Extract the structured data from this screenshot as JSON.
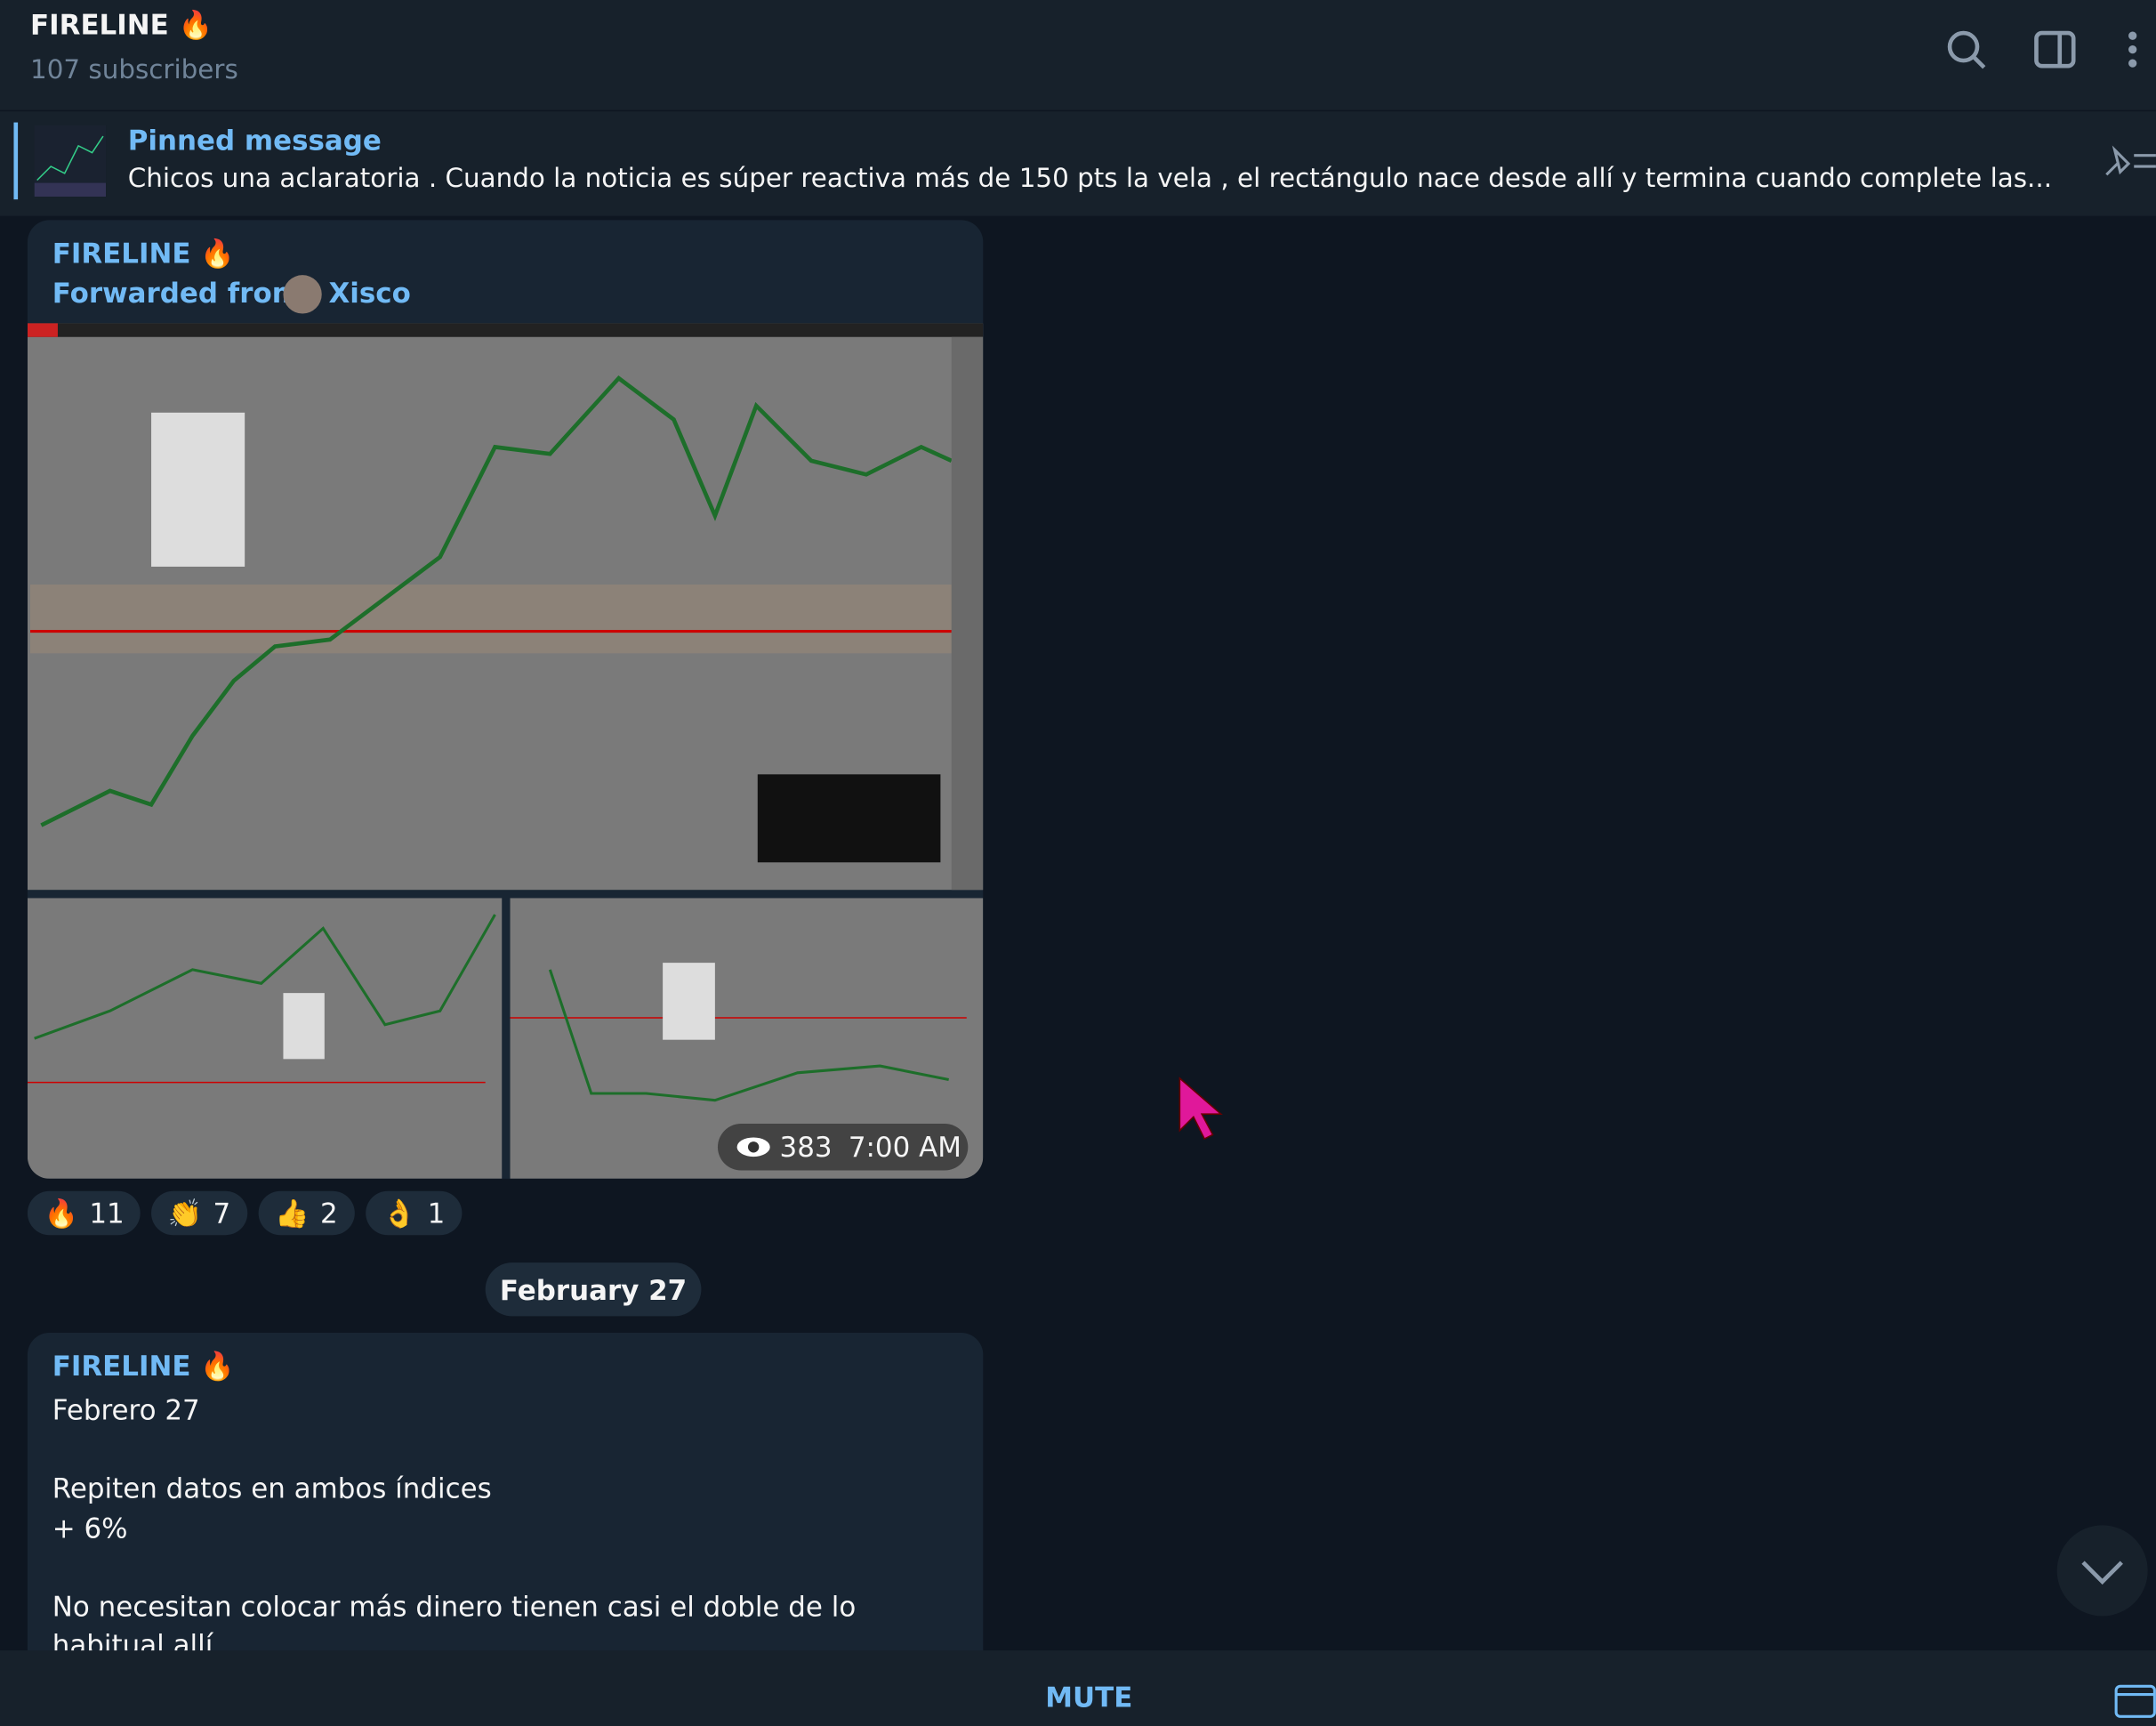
{
  "header": {
    "title": "FIRELINE 🔥",
    "subtitle": "107 subscribers"
  },
  "pinned": {
    "label": "Pinned message",
    "text": "Chicos una aclaratoria .  Cuando la noticia es súper reactiva más de 150 pts la vela , el rectángulo nace desde allí y termina cuando complete las..."
  },
  "messages": [
    {
      "author": "FIRELINE 🔥",
      "forwarded_label": "Forwarded from",
      "forwarded_name": "Xisco",
      "views": "383",
      "time": "7:00 AM",
      "reactions": [
        {
          "emoji": "🔥",
          "count": "11"
        },
        {
          "emoji": "👏",
          "count": "7"
        },
        {
          "emoji": "👍",
          "count": "2"
        },
        {
          "emoji": "👌",
          "count": "1"
        }
      ]
    },
    {
      "date": "February 27",
      "author": "FIRELINE 🔥",
      "lines": [
        "Febrero 27",
        "Repiten datos en ambos índices",
        "+ 6%",
        "No necesitan colocar más dinero tienen casi el doble de lo habitual allí"
      ]
    }
  ],
  "footer": {
    "button": "MUTE"
  }
}
